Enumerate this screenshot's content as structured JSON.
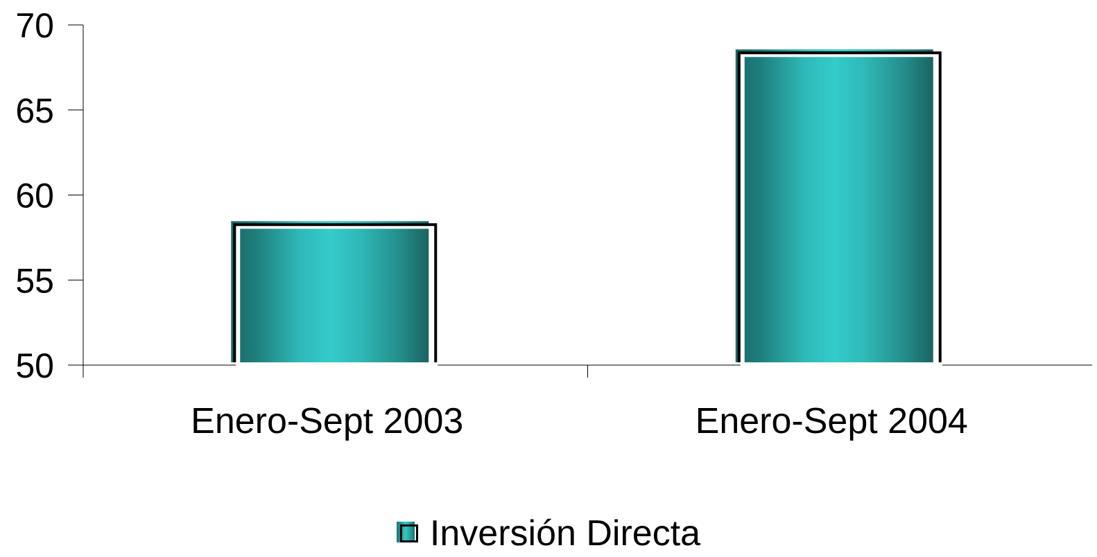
{
  "chart_data": {
    "type": "bar",
    "categories": [
      "Enero-Sept 2003",
      "Enero-Sept 2004"
    ],
    "series": [
      {
        "name": "Inversión Directa",
        "values": [
          58.3,
          68.4
        ]
      }
    ],
    "ylim": [
      50,
      70
    ],
    "yticks": [
      "50",
      "55",
      "60",
      "65",
      "70"
    ],
    "title": "",
    "xlabel": "",
    "ylabel": "",
    "grid": false,
    "legend_position": "bottom",
    "colors": {
      "bar_dark": "#1a6b69",
      "bar_light": "#33c9c8",
      "axis": "#000000"
    }
  }
}
